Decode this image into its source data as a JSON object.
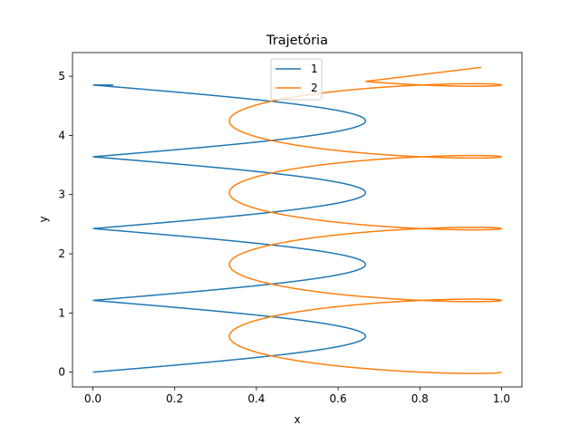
{
  "chart_data": {
    "type": "line",
    "title": "Trajetória",
    "xlabel": "x",
    "ylabel": "y",
    "xlim": [
      -0.05,
      1.05
    ],
    "ylim": [
      -0.25,
      5.4
    ],
    "xticks": [
      "0.0",
      "0.2",
      "0.4",
      "0.6",
      "0.8",
      "1.0"
    ],
    "yticks": [
      "0",
      "1",
      "2",
      "3",
      "4",
      "5"
    ],
    "grid": false,
    "legend_position": "upper center",
    "series": [
      {
        "name": "1",
        "color": "#1f77b4",
        "parametric": {
          "x_center": 0.333,
          "x_amp": 0.333,
          "x_phase": "-cos",
          "y_per_turn": 1.213,
          "turns": 4.0,
          "y_start": 0.0
        },
        "end": [
          0.05,
          4.85
        ]
      },
      {
        "name": "2",
        "color": "#ff7f0e",
        "parametric": {
          "x_center": 0.667,
          "x_amp": 0.333,
          "x_phase": "cos",
          "y_per_turn": 1.213,
          "turns": 4.25,
          "y_start": 0.0,
          "y_wobble": 0.2
        },
        "end": [
          0.95,
          5.15
        ]
      }
    ]
  }
}
